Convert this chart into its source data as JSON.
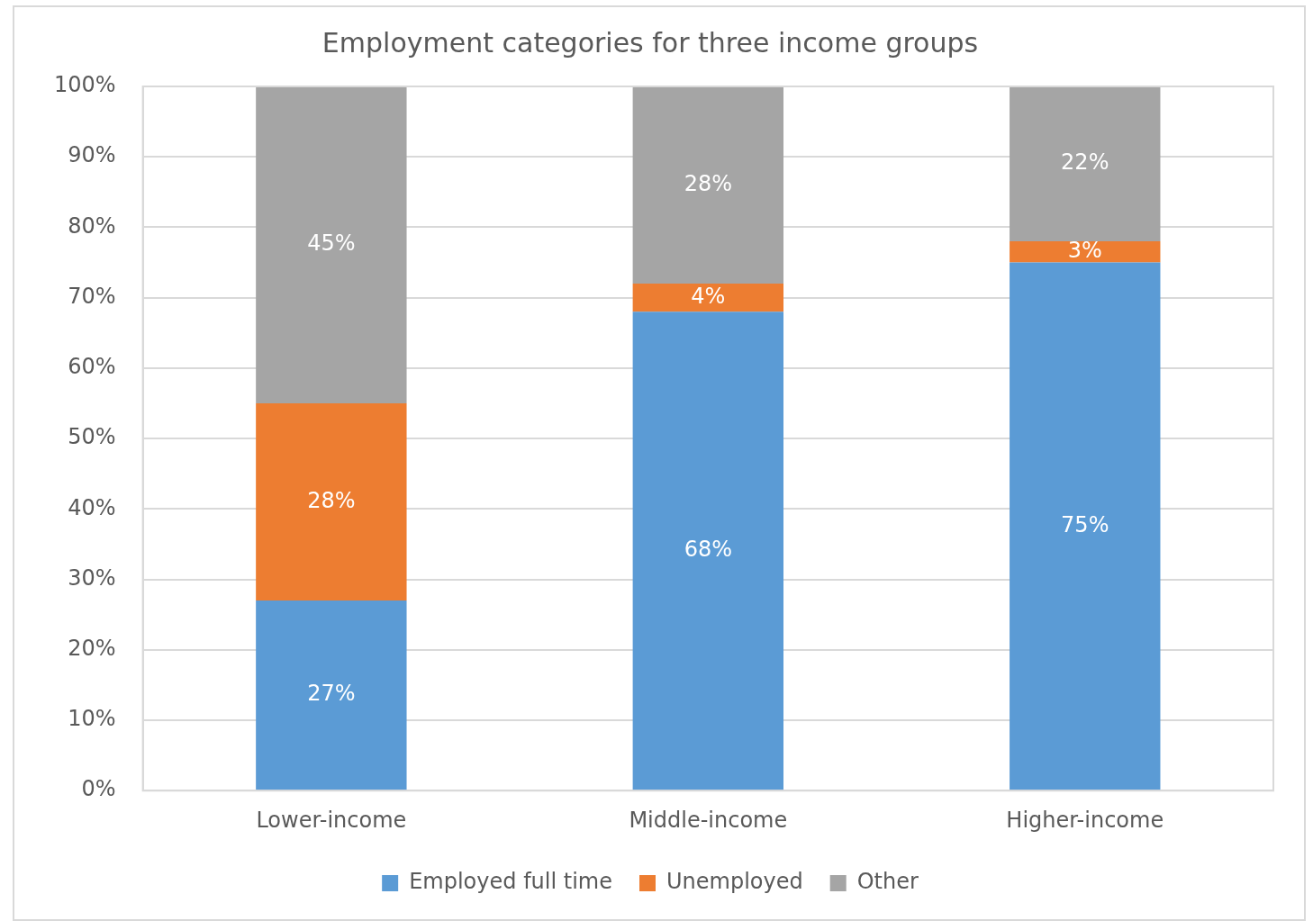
{
  "chart_data": {
    "type": "bar",
    "title": "Employment categories for three income groups",
    "categories": [
      "Lower-income",
      "Middle-income",
      "Higher-income"
    ],
    "stacked": true,
    "series": [
      {
        "name": "Employed full time",
        "color": "#5b9bd5",
        "values": [
          27,
          68,
          75
        ],
        "value_labels": [
          "27%",
          "68%",
          "75%"
        ]
      },
      {
        "name": "Unemployed",
        "color": "#ed7d31",
        "values": [
          28,
          4,
          3
        ],
        "value_labels": [
          "28%",
          "4%",
          "3%"
        ]
      },
      {
        "name": "Other",
        "color": "#a5a5a5",
        "values": [
          45,
          28,
          22
        ],
        "value_labels": [
          "45%",
          "28%",
          "22%"
        ]
      }
    ],
    "ylim": [
      0,
      100
    ],
    "yticks": [
      {
        "value": 0,
        "label": "0%"
      },
      {
        "value": 10,
        "label": "10%"
      },
      {
        "value": 20,
        "label": "20%"
      },
      {
        "value": 30,
        "label": "30%"
      },
      {
        "value": 40,
        "label": "40%"
      },
      {
        "value": 50,
        "label": "50%"
      },
      {
        "value": 60,
        "label": "60%"
      },
      {
        "value": 70,
        "label": "70%"
      },
      {
        "value": 80,
        "label": "80%"
      },
      {
        "value": 90,
        "label": "90%"
      },
      {
        "value": 100,
        "label": "100%"
      }
    ],
    "grid": "y",
    "legend": "bottom"
  }
}
